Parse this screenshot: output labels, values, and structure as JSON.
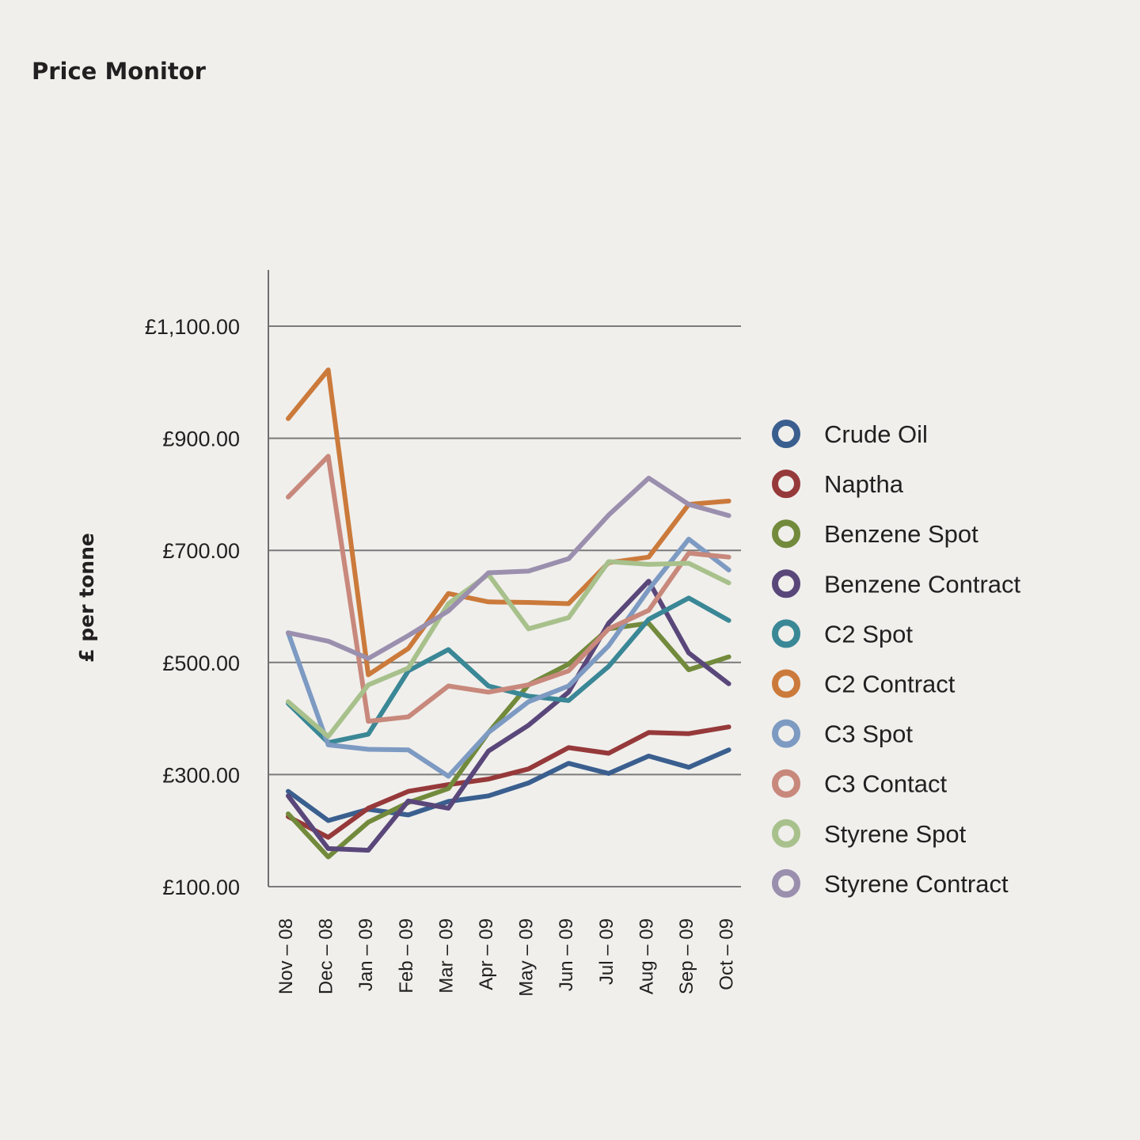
{
  "chart_data": {
    "type": "line",
    "title": "Price Monitor",
    "ylabel": "£ per tonne",
    "xlabel": "",
    "ylim": [
      100,
      1200
    ],
    "y_ticks": [
      {
        "value": 100,
        "label": "£100.00"
      },
      {
        "value": 300,
        "label": "£300.00"
      },
      {
        "value": 500,
        "label": "£500.00"
      },
      {
        "value": 700,
        "label": "£700.00"
      },
      {
        "value": 900,
        "label": "£900.00"
      },
      {
        "value": 1100,
        "label": "£1,100.00"
      }
    ],
    "categories": [
      "Nov – 08",
      "Dec – 08",
      "Jan – 09",
      "Feb – 09",
      "Mar – 09",
      "Apr – 09",
      "May – 09",
      "Jun – 09",
      "Jul – 09",
      "Aug – 09",
      "Sep – 09",
      "Oct – 09"
    ],
    "grid": true,
    "legend_position": "right",
    "series": [
      {
        "name": "Crude Oil",
        "color": "#3a5f8f",
        "values": [
          270,
          218,
          238,
          228,
          252,
          262,
          285,
          320,
          302,
          333,
          313,
          344
        ]
      },
      {
        "name": "Naptha",
        "color": "#96393a",
        "values": [
          225,
          188,
          240,
          270,
          282,
          292,
          310,
          348,
          338,
          375,
          373,
          385
        ]
      },
      {
        "name": "Benzene Spot",
        "color": "#728a3b",
        "values": [
          230,
          153,
          215,
          250,
          275,
          375,
          460,
          497,
          560,
          570,
          487,
          510
        ]
      },
      {
        "name": "Benzene Contract",
        "color": "#5a477a",
        "values": [
          262,
          168,
          165,
          253,
          240,
          342,
          388,
          447,
          570,
          645,
          517,
          462
        ]
      },
      {
        "name": "C2 Spot",
        "color": "#3a8796",
        "values": [
          427,
          357,
          372,
          485,
          523,
          458,
          440,
          432,
          493,
          577,
          615,
          575
        ]
      },
      {
        "name": "C2 Contract",
        "color": "#cb7a3b",
        "values": [
          935,
          1022,
          478,
          525,
          623,
          608,
          607,
          605,
          678,
          688,
          782,
          788
        ]
      },
      {
        "name": "C3 Spot",
        "color": "#7d9ac2",
        "values": [
          553,
          353,
          345,
          344,
          297,
          375,
          430,
          458,
          530,
          630,
          720,
          665
        ]
      },
      {
        "name": "C3 Contact",
        "color": "#c8887c",
        "values": [
          795,
          868,
          395,
          403,
          458,
          447,
          460,
          485,
          560,
          593,
          695,
          688
        ]
      },
      {
        "name": "Styrene Spot",
        "color": "#a8c18c",
        "values": [
          430,
          368,
          460,
          490,
          605,
          657,
          560,
          580,
          680,
          675,
          677,
          642
        ]
      },
      {
        "name": "Styrene Contract",
        "color": "#9b8fae",
        "values": [
          553,
          538,
          507,
          548,
          592,
          660,
          663,
          685,
          763,
          829,
          782,
          762
        ]
      }
    ]
  }
}
